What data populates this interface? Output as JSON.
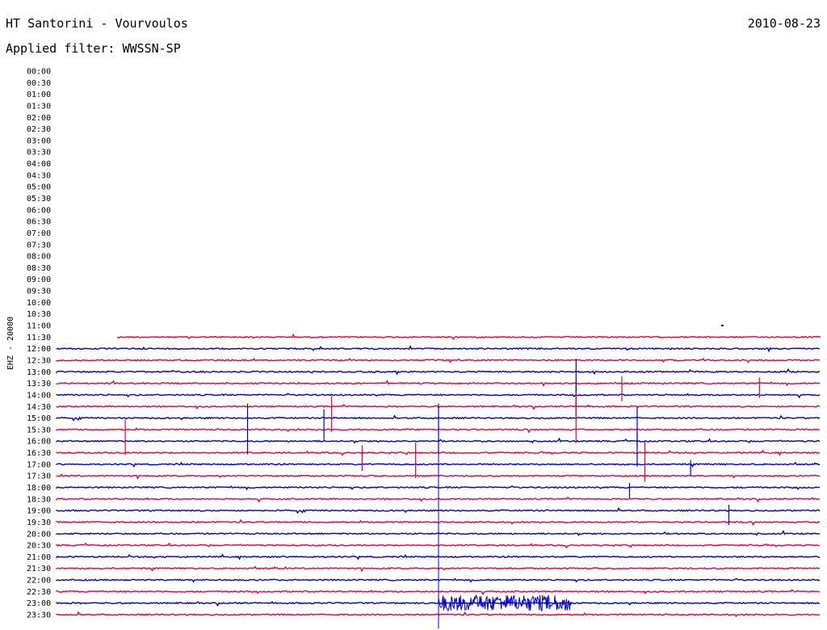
{
  "header": {
    "station": "HT Santorini - Vourvoulos",
    "filter": "Applied filter: WWSSN-SP",
    "date": "2010-08-23"
  },
  "chart_data": {
    "type": "line",
    "title": "HT Santorini - Vourvoulos",
    "subtitle": "Applied filter: WWSSN-SP",
    "ylabel": "EHZ - 20000",
    "row_labels": [
      "00:00",
      "00:30",
      "01:00",
      "01:30",
      "02:00",
      "02:30",
      "03:00",
      "03:30",
      "04:00",
      "04:30",
      "05:00",
      "05:30",
      "06:00",
      "06:30",
      "07:00",
      "07:30",
      "08:00",
      "08:30",
      "09:00",
      "09:30",
      "10:00",
      "10:30",
      "11:00",
      "11:30",
      "12:00",
      "12:30",
      "13:00",
      "13:30",
      "14:00",
      "14:30",
      "15:00",
      "15:30",
      "16:00",
      "16:30",
      "17:00",
      "17:30",
      "18:00",
      "18:30",
      "19:00",
      "19:30",
      "20:00",
      "20:30",
      "21:00",
      "21:30",
      "22:00",
      "22:30",
      "23:00",
      "23:30"
    ],
    "row_colors": [
      "#0000cc",
      "#ee0033"
    ],
    "trace_start_row": "11:30",
    "trace_start_fraction": 0.08,
    "grid": false,
    "events": [
      {
        "row": "13:00",
        "position": 0.68,
        "amplitude": 0.9
      },
      {
        "row": "13:30",
        "position": 0.74,
        "amplitude": 0.5
      },
      {
        "row": "13:30",
        "position": 0.92,
        "amplitude": 0.4
      },
      {
        "row": "14:00",
        "position": 0.68,
        "amplitude": 0.6
      },
      {
        "row": "14:30",
        "position": 0.36,
        "amplitude": 0.7
      },
      {
        "row": "14:30",
        "position": 0.68,
        "amplitude": 1.0
      },
      {
        "row": "15:00",
        "position": 0.25,
        "amplitude": 1.0
      },
      {
        "row": "15:00",
        "position": 0.35,
        "amplitude": 0.6
      },
      {
        "row": "15:00",
        "position": 0.5,
        "amplitude": 1.0
      },
      {
        "row": "15:00",
        "position": 0.76,
        "amplitude": 0.8
      },
      {
        "row": "15:30",
        "position": 0.09,
        "amplitude": 0.7
      },
      {
        "row": "16:00",
        "position": 0.76,
        "amplitude": 0.7
      },
      {
        "row": "16:30",
        "position": 0.4,
        "amplitude": 0.5
      },
      {
        "row": "16:30",
        "position": 0.47,
        "amplitude": 0.7
      },
      {
        "row": "16:30",
        "position": 0.77,
        "amplitude": 0.8
      },
      {
        "row": "17:00",
        "position": 0.83,
        "amplitude": 0.3
      },
      {
        "row": "18:00",
        "position": 0.75,
        "amplitude": 0.3
      },
      {
        "row": "19:00",
        "position": 0.88,
        "amplitude": 0.4
      }
    ],
    "tremor_segments": [
      {
        "row": "23:00",
        "start": 0.5,
        "end": 0.675,
        "amplitude": 1.0
      }
    ],
    "marker": {
      "row": "11:00",
      "position": 0.87
    }
  }
}
